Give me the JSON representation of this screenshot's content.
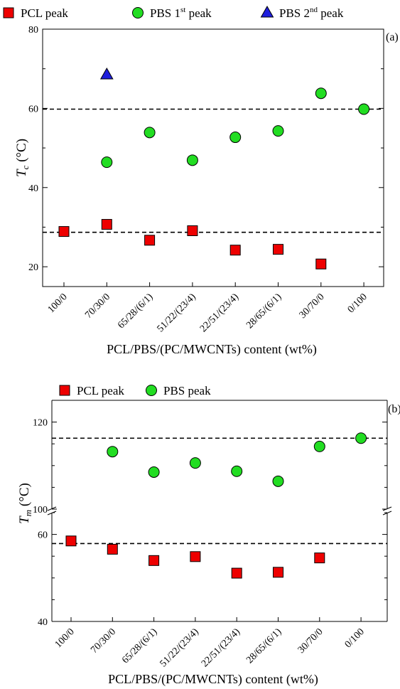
{
  "chart_data": [
    {
      "type": "scatter",
      "panel_label": "(a)",
      "categories": [
        "100/0",
        "70/30/0",
        "65/28/(6/1)",
        "51/22/(23/4)",
        "22/51/(23/4)",
        "28/65/(6/1)",
        "30/70/0",
        "0/100"
      ],
      "xlabel": "PCL/PBS/(PC/MWCNTs) content (wt%)",
      "ylabel_main": "T",
      "ylabel_sub": "c",
      "ylabel_unit": " (°C)",
      "ylim": [
        15,
        80
      ],
      "yticks": [
        "20",
        "40",
        "60",
        "80"
      ],
      "reference_lines": [
        28.7,
        59.8
      ],
      "series": [
        {
          "name": "PCL peak",
          "marker": "square",
          "color": "#ee0000",
          "values": [
            28.9,
            30.7,
            26.7,
            29.1,
            24.2,
            24.4,
            20.7,
            null
          ]
        },
        {
          "name": "PBS 1",
          "name_sup": "st",
          "name_suffix": " peak",
          "marker": "circle",
          "color": "#22dd22",
          "values": [
            null,
            46.4,
            53.9,
            46.9,
            52.7,
            54.3,
            63.8,
            59.8
          ]
        },
        {
          "name": "PBS 2",
          "name_sup": "nd",
          "name_suffix": " peak",
          "marker": "triangle",
          "color": "#1f1fdd",
          "values": [
            null,
            68.5,
            null,
            null,
            null,
            null,
            null,
            null
          ]
        }
      ]
    },
    {
      "type": "scatter",
      "panel_label": "(b)",
      "categories": [
        "100/0",
        "70/30/0",
        "65/28/(6/1)",
        "51/22/(23/4)",
        "22/51/(23/4)",
        "28/65/(6/1)",
        "30/70/0",
        "0/100"
      ],
      "xlabel": "PCL/PBS/(PC/MWCNTs) content (wt%)",
      "ylabel_main": "T",
      "ylabel_sub": "m",
      "ylabel_unit": " (°C)",
      "broken_axis": true,
      "upper_ylim": [
        100,
        125
      ],
      "lower_ylim": [
        40,
        65
      ],
      "upper_yticks": [
        "100",
        "120"
      ],
      "lower_yticks": [
        "40",
        "60"
      ],
      "reference_lines": [
        57.9,
        116.3
      ],
      "series": [
        {
          "name": "PCL peak",
          "marker": "square",
          "color": "#ee0000",
          "values": [
            58.5,
            56.6,
            54.0,
            54.9,
            51.1,
            51.3,
            54.6,
            null
          ]
        },
        {
          "name": "PBS peak",
          "marker": "circle",
          "color": "#22dd22",
          "values": [
            null,
            113.2,
            108.5,
            110.6,
            108.7,
            106.4,
            114.4,
            116.3
          ]
        }
      ]
    }
  ]
}
